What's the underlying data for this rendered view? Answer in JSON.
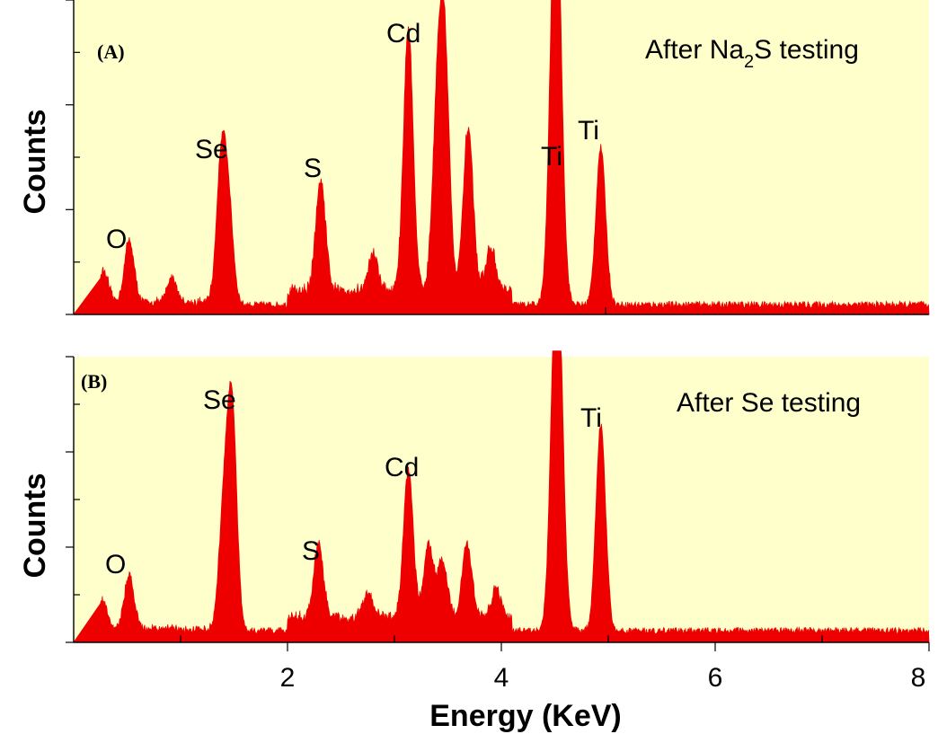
{
  "chart_data": [
    {
      "type": "area",
      "panel": "(A)",
      "title": "",
      "annotation": {
        "prefix": "After Na",
        "sub": "2",
        "suffix": "S testing"
      },
      "xlabel": "",
      "ylabel": "Counts",
      "xlim": [
        0.0,
        8.0
      ],
      "ylim": [
        0,
        100
      ],
      "grid": false,
      "color": "#ee0000",
      "peaks": [
        {
          "label": "O",
          "x": 0.52,
          "y": 20
        },
        {
          "label": "Se",
          "x": 1.38,
          "y": 44
        },
        {
          "label": "S",
          "x": 2.31,
          "y": 35
        },
        {
          "label": "Cd",
          "x": 3.13,
          "y": 84
        },
        {
          "label": "Ti",
          "x": 4.51,
          "y": 140
        },
        {
          "label": "Ti",
          "x": 4.93,
          "y": 50
        }
      ],
      "extra_peaks": [
        {
          "x": 0.28,
          "y": 10
        },
        {
          "x": 0.92,
          "y": 8
        },
        {
          "x": 1.45,
          "y": 28
        },
        {
          "x": 3.4,
          "y": 54
        },
        {
          "x": 3.47,
          "y": 73
        },
        {
          "x": 3.69,
          "y": 52
        },
        {
          "x": 2.8,
          "y": 12
        },
        {
          "x": 3.9,
          "y": 14
        }
      ],
      "baseline": 2,
      "peak_width": 0.045,
      "labels_shown": [
        "O",
        "Se",
        "S",
        "Cd",
        "Ti",
        "Ti"
      ]
    },
    {
      "type": "area",
      "panel": "(B)",
      "title": "",
      "annotation": {
        "prefix": "After Se testing",
        "sub": "",
        "suffix": ""
      },
      "xlabel": "Energy (KeV)",
      "ylabel": "Counts",
      "xlim": [
        0.0,
        8.0
      ],
      "ylim": [
        0,
        100
      ],
      "xticks": [
        2,
        4,
        6,
        8
      ],
      "grid": false,
      "color": "#ee0000",
      "peaks": [
        {
          "label": "O",
          "x": 0.52,
          "y": 19
        },
        {
          "label": "Se",
          "x": 1.48,
          "y": 78
        },
        {
          "label": "S",
          "x": 2.29,
          "y": 26
        },
        {
          "label": "Cd",
          "x": 3.13,
          "y": 52
        },
        {
          "label": "Ti",
          "x": 4.52,
          "y": 140
        },
        {
          "label": "Ti",
          "x": 4.93,
          "y": 72
        }
      ],
      "extra_peaks": [
        {
          "x": 0.27,
          "y": 10
        },
        {
          "x": 1.4,
          "y": 38
        },
        {
          "x": 3.32,
          "y": 26
        },
        {
          "x": 3.45,
          "y": 20
        },
        {
          "x": 3.68,
          "y": 26
        },
        {
          "x": 2.75,
          "y": 9
        },
        {
          "x": 3.95,
          "y": 10
        }
      ],
      "baseline": 3,
      "peak_width": 0.045,
      "labels_shown": [
        "O",
        "Se",
        "S",
        "Cd",
        "Ti"
      ]
    }
  ]
}
